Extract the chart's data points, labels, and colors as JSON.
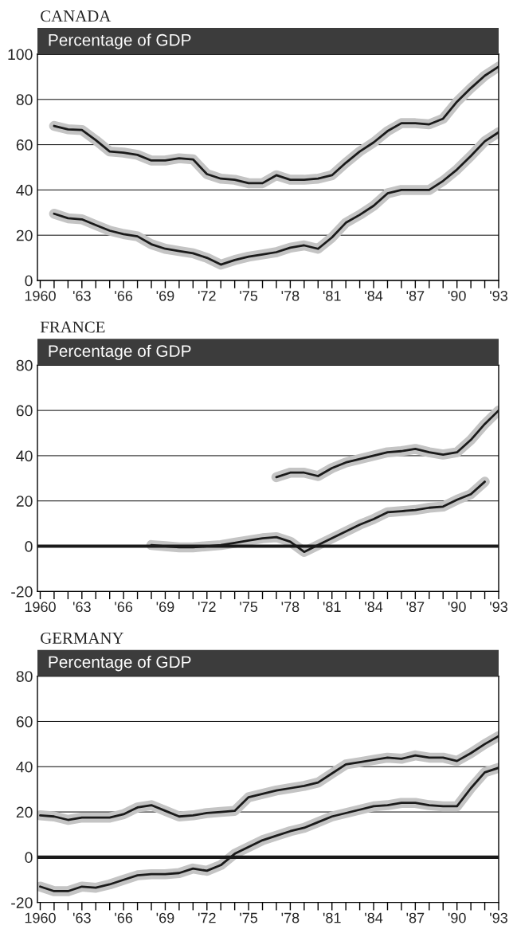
{
  "chart_data": [
    {
      "type": "line",
      "title": "CANADA",
      "subtitle": "Percentage of GDP",
      "x": [
        1961,
        1962,
        1963,
        1964,
        1965,
        1966,
        1967,
        1968,
        1969,
        1970,
        1971,
        1972,
        1973,
        1974,
        1975,
        1976,
        1977,
        1978,
        1979,
        1980,
        1981,
        1982,
        1983,
        1984,
        1985,
        1986,
        1987,
        1988,
        1989,
        1990,
        1991,
        1992,
        1993
      ],
      "series": [
        {
          "color": "#1a1a1a",
          "values": [
            68.3,
            66.8,
            66.5,
            62,
            57,
            56.5,
            55.5,
            53,
            53,
            54,
            53.5,
            47,
            45,
            44.5,
            43,
            43,
            46.5,
            44.5,
            44.5,
            45,
            46.5,
            52,
            57,
            61,
            66,
            69.5,
            69.5,
            69,
            71.5,
            79,
            85,
            90.5,
            94.5
          ]
        },
        {
          "color": "#1a1a1a",
          "values": [
            29.5,
            27.5,
            27,
            24.5,
            22,
            20.5,
            19.5,
            16,
            14,
            13,
            12,
            10,
            7,
            9,
            10.5,
            11.5,
            12.5,
            14.5,
            15.5,
            14,
            19,
            25.5,
            29,
            33,
            38.5,
            40,
            40,
            40,
            44,
            49,
            55,
            61.5,
            65.5
          ]
        }
      ],
      "xlim": [
        1959.8,
        1993
      ],
      "ylim": [
        0,
        100
      ],
      "yticks": [
        0,
        20,
        40,
        60,
        80,
        100
      ],
      "xticks": [
        1960,
        {
          "value": 1961,
          "label": null
        },
        {
          "value": 1962,
          "label": null
        },
        {
          "value": 1963,
          "label": "'63"
        },
        {
          "value": 1964,
          "label": null
        },
        {
          "value": 1965,
          "label": null
        },
        {
          "value": 1966,
          "label": "'66"
        },
        {
          "value": 1967,
          "label": null
        },
        {
          "value": 1968,
          "label": null
        },
        {
          "value": 1969,
          "label": "'69"
        },
        {
          "value": 1970,
          "label": null
        },
        {
          "value": 1971,
          "label": null
        },
        {
          "value": 1972,
          "label": "'72"
        },
        {
          "value": 1973,
          "label": null
        },
        {
          "value": 1974,
          "label": null
        },
        {
          "value": 1975,
          "label": "'75"
        },
        {
          "value": 1976,
          "label": null
        },
        {
          "value": 1977,
          "label": null
        },
        {
          "value": 1978,
          "label": "'78"
        },
        {
          "value": 1979,
          "label": null
        },
        {
          "value": 1980,
          "label": null
        },
        {
          "value": 1981,
          "label": "'81"
        },
        {
          "value": 1982,
          "label": null
        },
        {
          "value": 1983,
          "label": null
        },
        {
          "value": 1984,
          "label": "'84"
        },
        {
          "value": 1985,
          "label": null
        },
        {
          "value": 1986,
          "label": null
        },
        {
          "value": 1987,
          "label": "'87"
        },
        {
          "value": 1988,
          "label": null
        },
        {
          "value": 1989,
          "label": null
        },
        {
          "value": 1990,
          "label": "'90"
        },
        {
          "value": 1991,
          "label": null
        },
        {
          "value": 1992,
          "label": null
        },
        {
          "value": 1993,
          "label": "'93"
        }
      ],
      "grid": "y"
    },
    {
      "type": "line",
      "title": "FRANCE",
      "subtitle": "Percentage of GDP",
      "series": [
        {
          "color": "#1a1a1a",
          "x": [
            1977,
            1978,
            1979,
            1980,
            1981,
            1982,
            1983,
            1984,
            1985,
            1986,
            1987,
            1988,
            1989,
            1990,
            1991,
            1992,
            1993
          ],
          "values": [
            30.5,
            32.5,
            32.5,
            31,
            34.5,
            37,
            38.5,
            40,
            41.5,
            42,
            43,
            41.5,
            40.5,
            41.5,
            47,
            54,
            60
          ]
        },
        {
          "color": "#1a1a1a",
          "x": [
            1968,
            1969,
            1970,
            1971,
            1972,
            1973,
            1974,
            1975,
            1976,
            1977,
            1978,
            1979,
            1980,
            1981,
            1982,
            1983,
            1984,
            1985,
            1986,
            1987,
            1988,
            1989,
            1990,
            1991,
            1992
          ],
          "values": [
            0.5,
            0,
            -0.5,
            -0.5,
            0,
            0.5,
            1.5,
            2.5,
            3.5,
            4,
            2,
            -2.5,
            0.5,
            3.5,
            6.5,
            9.5,
            12,
            15,
            15.5,
            16,
            17,
            17.5,
            20.5,
            23,
            28.5
          ]
        }
      ],
      "xlim": [
        1959.8,
        1993
      ],
      "ylim": [
        -20,
        80
      ],
      "yticks": [
        -20,
        0,
        20,
        40,
        60,
        80
      ],
      "xticks": [
        1960,
        {
          "value": 1961,
          "label": null
        },
        {
          "value": 1962,
          "label": null
        },
        {
          "value": 1963,
          "label": "'63"
        },
        {
          "value": 1964,
          "label": null
        },
        {
          "value": 1965,
          "label": null
        },
        {
          "value": 1966,
          "label": "'66"
        },
        {
          "value": 1967,
          "label": null
        },
        {
          "value": 1968,
          "label": null
        },
        {
          "value": 1969,
          "label": "'69"
        },
        {
          "value": 1970,
          "label": null
        },
        {
          "value": 1971,
          "label": null
        },
        {
          "value": 1972,
          "label": "'72"
        },
        {
          "value": 1973,
          "label": null
        },
        {
          "value": 1974,
          "label": null
        },
        {
          "value": 1975,
          "label": "'75"
        },
        {
          "value": 1976,
          "label": null
        },
        {
          "value": 1977,
          "label": null
        },
        {
          "value": 1978,
          "label": "'78"
        },
        {
          "value": 1979,
          "label": null
        },
        {
          "value": 1980,
          "label": null
        },
        {
          "value": 1981,
          "label": "'81"
        },
        {
          "value": 1982,
          "label": null
        },
        {
          "value": 1983,
          "label": null
        },
        {
          "value": 1984,
          "label": "'84"
        },
        {
          "value": 1985,
          "label": null
        },
        {
          "value": 1986,
          "label": null
        },
        {
          "value": 1987,
          "label": "'87"
        },
        {
          "value": 1988,
          "label": null
        },
        {
          "value": 1989,
          "label": null
        },
        {
          "value": 1990,
          "label": "'90"
        },
        {
          "value": 1991,
          "label": null
        },
        {
          "value": 1992,
          "label": null
        },
        {
          "value": 1993,
          "label": "'93"
        }
      ],
      "grid": "y",
      "ref_lines": [
        {
          "axis": "y",
          "value": 0,
          "color": "#1a1a1a"
        }
      ]
    },
    {
      "type": "line",
      "title": "GERMANY",
      "subtitle": "Percentage of GDP",
      "x": [
        1960,
        1961,
        1962,
        1963,
        1964,
        1965,
        1966,
        1967,
        1968,
        1969,
        1970,
        1971,
        1972,
        1973,
        1974,
        1975,
        1976,
        1977,
        1978,
        1979,
        1980,
        1981,
        1982,
        1983,
        1984,
        1985,
        1986,
        1987,
        1988,
        1989,
        1990,
        1991,
        1992,
        1993
      ],
      "series": [
        {
          "color": "#1a1a1a",
          "values": [
            18.5,
            18,
            16.5,
            17.5,
            17.5,
            17.5,
            19,
            22,
            23,
            20.5,
            18,
            18.5,
            19.5,
            20,
            20.5,
            26.5,
            28,
            29.5,
            30.5,
            31.5,
            33,
            37,
            41,
            42,
            43,
            44,
            43.5,
            45,
            44,
            44,
            42.5,
            46,
            50,
            53.5
          ]
        },
        {
          "color": "#1a1a1a",
          "values": [
            -13,
            -15,
            -15,
            -13,
            -13.5,
            -12,
            -10,
            -8,
            -7.5,
            -7.5,
            -7,
            -5,
            -6,
            -3.5,
            1.5,
            4.5,
            7.5,
            9.5,
            11.5,
            13,
            15.5,
            18,
            19.5,
            21,
            22.5,
            23,
            24,
            24,
            23,
            22.5,
            22.5,
            30.5,
            37.5,
            39.5
          ]
        }
      ],
      "xlim": [
        1959.8,
        1993
      ],
      "ylim": [
        -20,
        80
      ],
      "yticks": [
        -20,
        0,
        20,
        40,
        60,
        80
      ],
      "xticks": [
        1960,
        {
          "value": 1961,
          "label": null
        },
        {
          "value": 1962,
          "label": null
        },
        {
          "value": 1963,
          "label": "'63"
        },
        {
          "value": 1964,
          "label": null
        },
        {
          "value": 1965,
          "label": null
        },
        {
          "value": 1966,
          "label": "'66"
        },
        {
          "value": 1967,
          "label": null
        },
        {
          "value": 1968,
          "label": null
        },
        {
          "value": 1969,
          "label": "'69"
        },
        {
          "value": 1970,
          "label": null
        },
        {
          "value": 1971,
          "label": null
        },
        {
          "value": 1972,
          "label": "'72"
        },
        {
          "value": 1973,
          "label": null
        },
        {
          "value": 1974,
          "label": null
        },
        {
          "value": 1975,
          "label": "'75"
        },
        {
          "value": 1976,
          "label": null
        },
        {
          "value": 1977,
          "label": null
        },
        {
          "value": 1978,
          "label": "'78"
        },
        {
          "value": 1979,
          "label": null
        },
        {
          "value": 1980,
          "label": null
        },
        {
          "value": 1981,
          "label": "'81"
        },
        {
          "value": 1982,
          "label": null
        },
        {
          "value": 1983,
          "label": null
        },
        {
          "value": 1984,
          "label": "'84"
        },
        {
          "value": 1985,
          "label": null
        },
        {
          "value": 1986,
          "label": null
        },
        {
          "value": 1987,
          "label": "'87"
        },
        {
          "value": 1988,
          "label": null
        },
        {
          "value": 1989,
          "label": null
        },
        {
          "value": 1990,
          "label": "'90"
        },
        {
          "value": 1991,
          "label": null
        },
        {
          "value": 1992,
          "label": null
        },
        {
          "value": 1993,
          "label": "'93"
        }
      ],
      "grid": "y",
      "ref_lines": [
        {
          "axis": "y",
          "value": 0,
          "color": "#1a1a1a"
        }
      ]
    }
  ]
}
